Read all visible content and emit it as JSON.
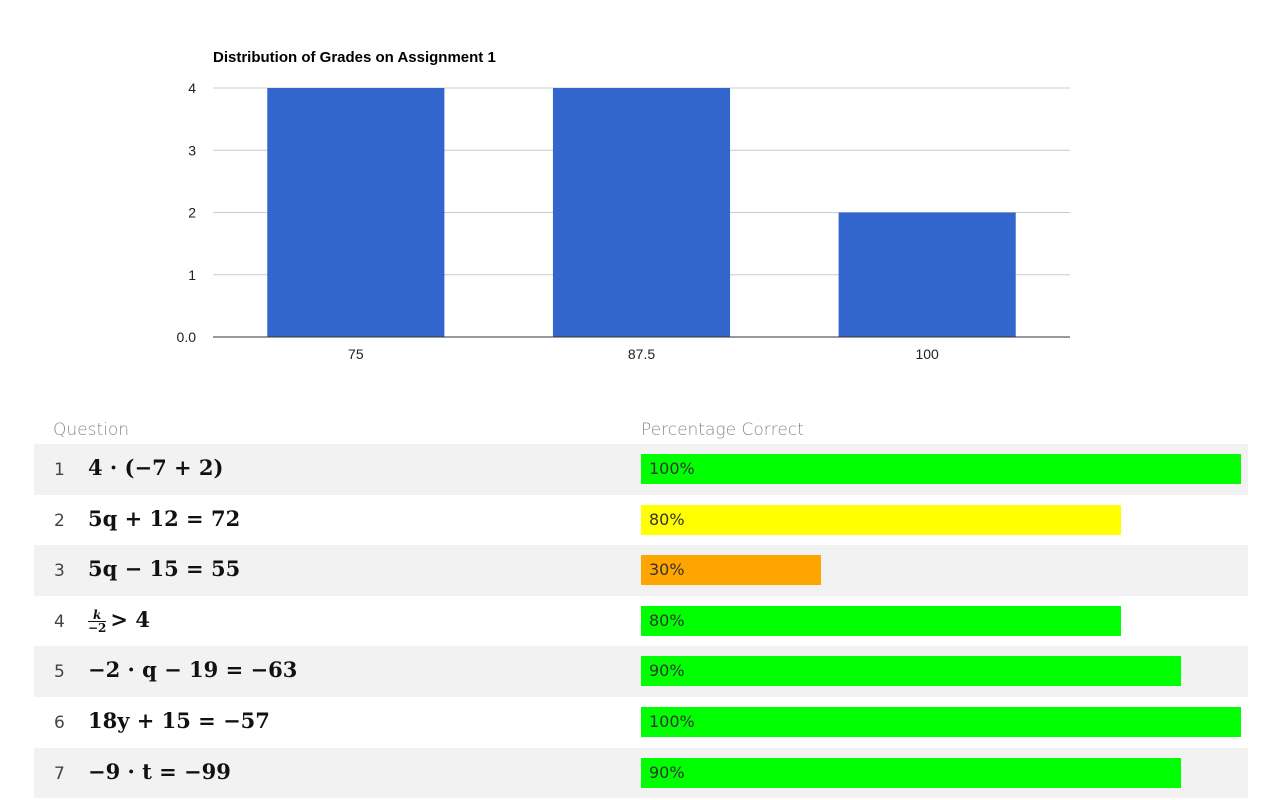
{
  "chart_data": {
    "type": "bar",
    "title": "Distribution of Grades on Assignment 1",
    "categories": [
      "75",
      "87.5",
      "100"
    ],
    "values": [
      4,
      4,
      2
    ],
    "ylim": [
      0,
      4
    ],
    "yticks": [
      "0.0",
      "1",
      "2",
      "3",
      "4"
    ],
    "grid": true,
    "bar_color": "#3366cc"
  },
  "table": {
    "question_header": "Question",
    "percent_header": "Percentage Correct",
    "rows": [
      {
        "num": "1",
        "expr": "4 · (−7 + 2)",
        "pct_label": "100%",
        "pct": 100,
        "color": "#00ff00"
      },
      {
        "num": "2",
        "expr": "5q + 12 = 72",
        "pct_label": "80%",
        "pct": 80,
        "color": "#ffff00"
      },
      {
        "num": "3",
        "expr": "5q − 15 = 55",
        "pct_label": "30%",
        "pct": 30,
        "color": "#ffa500"
      },
      {
        "num": "4",
        "expr_num": "k",
        "expr_den": "−2",
        "expr_rest": "> 4",
        "pct_label": "80%",
        "pct": 80,
        "color": "#00ff00"
      },
      {
        "num": "5",
        "expr": "−2 · q − 19 = −63",
        "pct_label": "90%",
        "pct": 90,
        "color": "#00ff00"
      },
      {
        "num": "6",
        "expr": "18y + 15 = −57",
        "pct_label": "100%",
        "pct": 100,
        "color": "#00ff00"
      },
      {
        "num": "7",
        "expr": "−9 · t = −99",
        "pct_label": "90%",
        "pct": 90,
        "color": "#00ff00"
      }
    ]
  }
}
